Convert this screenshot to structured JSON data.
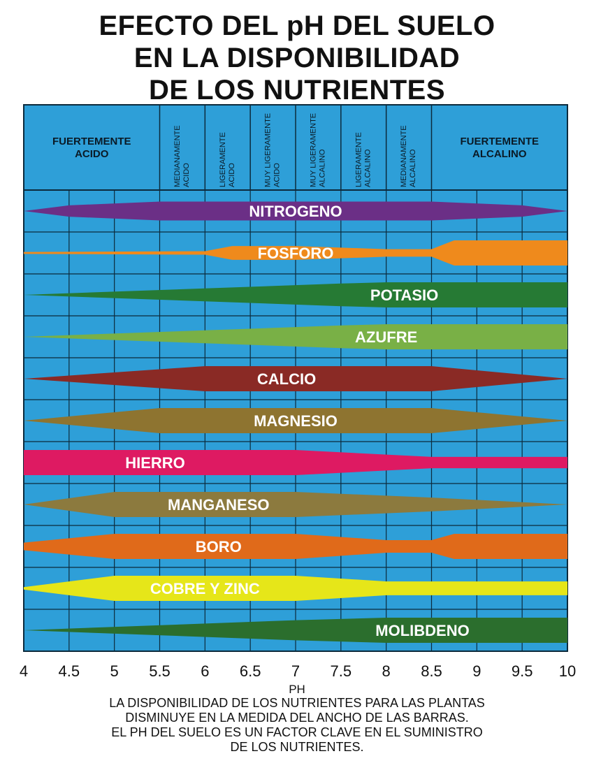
{
  "title_lines": [
    "EFECTO DEL pH DEL SUELO",
    "EN LA DISPONIBILIDAD",
    "DE LOS NUTRIENTES"
  ],
  "caption_lines": [
    "LA DISPONIBILIDAD DE LOS NUTRIENTES PARA LAS PLANTAS",
    "DISMINUYE EN LA MEDIDA DEL ANCHO DE LAS BARRAS.",
    "EL PH DEL SUELO ES UN FACTOR CLAVE EN EL SUMINISTRO",
    "DE LOS NUTRIENTES."
  ],
  "colors": {
    "background": "#2e9fd8",
    "grid": "#0c2a3c",
    "header_text": "#0a1a26",
    "bar_text": "#ffffff"
  },
  "chart_data": {
    "type": "area",
    "title": "EFECTO DEL pH DEL SUELO EN LA DISPONIBILIDAD DE LOS NUTRIENTES",
    "xlabel": "PH",
    "ylabel": "",
    "xlim": [
      4,
      10
    ],
    "x_ticks": [
      4,
      4.5,
      5,
      5.5,
      6,
      6.5,
      7,
      7.5,
      8,
      8.5,
      9,
      9.5,
      10
    ],
    "x_tick_labels": [
      "4",
      "4.5",
      "5",
      "5.5",
      "6",
      "6.5",
      "7",
      "7.5",
      "8",
      "8.5",
      "9",
      "9.5",
      "10"
    ],
    "grid": true,
    "zones": [
      {
        "label": "FUERTEMENTE ACIDO",
        "from": 4,
        "to": 5.5,
        "orientation": "horizontal"
      },
      {
        "label": "MEDIANAMENTE ACIDO",
        "from": 5.5,
        "to": 6,
        "orientation": "vertical"
      },
      {
        "label": "LIGERAMENTE ACIDO",
        "from": 6,
        "to": 6.5,
        "orientation": "vertical"
      },
      {
        "label": "MUY LIGERAMENTE ACIDO",
        "from": 6.5,
        "to": 7,
        "orientation": "vertical"
      },
      {
        "label": "MUY LIGERAMENTE ALCALINO",
        "from": 7,
        "to": 7.5,
        "orientation": "vertical"
      },
      {
        "label": "LIGERAMENTE ALCALINO",
        "from": 7.5,
        "to": 8,
        "orientation": "vertical"
      },
      {
        "label": "MEDIANAMENTE ALCALINO",
        "from": 8,
        "to": 8.5,
        "orientation": "vertical"
      },
      {
        "label": "FUERTEMENTE ALCALINO",
        "from": 8.5,
        "to": 10,
        "orientation": "horizontal"
      }
    ],
    "nutrient_width_scale": "relative availability, 0 to 1",
    "series": [
      {
        "name": "NITROGENO",
        "color": "#6b2f86",
        "label_x": 7.0,
        "profile": [
          [
            4,
            0
          ],
          [
            4.5,
            0.45
          ],
          [
            5.5,
            0.75
          ],
          [
            8.5,
            0.75
          ],
          [
            9.5,
            0.45
          ],
          [
            10,
            0
          ]
        ]
      },
      {
        "name": "FOSFORO",
        "color": "#ef8a1c",
        "label_x": 7.0,
        "profile": [
          [
            4,
            0.08
          ],
          [
            6,
            0.14
          ],
          [
            6.3,
            0.55
          ],
          [
            7,
            0.55
          ],
          [
            8,
            0.3
          ],
          [
            8.5,
            0.3
          ],
          [
            8.75,
            1
          ],
          [
            10,
            1
          ]
        ]
      },
      {
        "name": "POTASIO",
        "color": "#267a34",
        "label_x": 8.2,
        "profile": [
          [
            4,
            0
          ],
          [
            7.5,
            0.9
          ],
          [
            8,
            1
          ],
          [
            10,
            1
          ]
        ]
      },
      {
        "name": "AZUFRE",
        "color": "#79b046",
        "label_x": 8.0,
        "profile": [
          [
            4,
            0
          ],
          [
            7.5,
            0.9
          ],
          [
            8,
            1
          ],
          [
            10,
            1
          ]
        ]
      },
      {
        "name": "CALCIO",
        "color": "#8a2a25",
        "label_x": 6.9,
        "profile": [
          [
            4,
            0
          ],
          [
            6,
            1
          ],
          [
            8.5,
            1
          ],
          [
            10,
            0
          ]
        ]
      },
      {
        "name": "MAGNESIO",
        "color": "#8e7430",
        "label_x": 7.0,
        "profile": [
          [
            4,
            0
          ],
          [
            5.5,
            1
          ],
          [
            8.5,
            1
          ],
          [
            10,
            0
          ]
        ]
      },
      {
        "name": "HIERRO",
        "color": "#de1a62",
        "label_x": 5.45,
        "profile": [
          [
            4,
            1
          ],
          [
            7,
            1
          ],
          [
            8.5,
            0.45
          ],
          [
            10,
            0.45
          ]
        ]
      },
      {
        "name": "MANGANESO",
        "color": "#8c7a3e",
        "label_x": 6.15,
        "profile": [
          [
            4,
            0
          ],
          [
            5,
            1
          ],
          [
            7,
            1
          ],
          [
            8.5,
            0.55
          ],
          [
            10,
            0
          ]
        ]
      },
      {
        "name": "BORO",
        "color": "#e06a1a",
        "label_x": 6.15,
        "profile": [
          [
            4,
            0.3
          ],
          [
            5,
            1
          ],
          [
            7,
            1
          ],
          [
            8,
            0.5
          ],
          [
            8.5,
            0.5
          ],
          [
            8.75,
            1
          ],
          [
            10,
            1
          ]
        ]
      },
      {
        "name": "COBRE Y ZINC",
        "color": "#e6e619",
        "label_x": 6.0,
        "profile": [
          [
            4,
            0.1
          ],
          [
            5,
            1
          ],
          [
            7,
            1
          ],
          [
            8,
            0.55
          ],
          [
            10,
            0.55
          ]
        ]
      },
      {
        "name": "MOLIBDENO",
        "color": "#2b6e2d",
        "label_x": 8.4,
        "profile": [
          [
            4,
            0
          ],
          [
            7,
            0.8
          ],
          [
            8,
            1
          ],
          [
            10,
            1
          ]
        ]
      }
    ]
  }
}
